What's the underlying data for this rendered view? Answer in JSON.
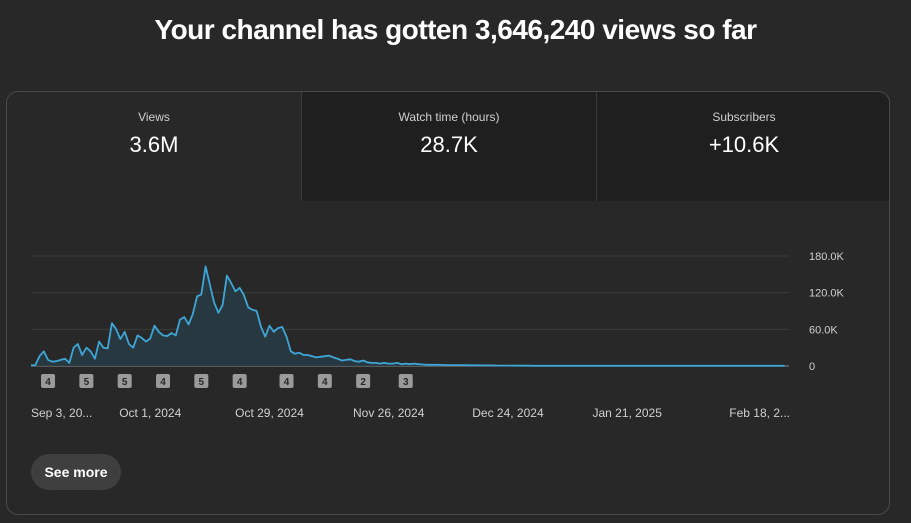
{
  "headline": "Your channel has gotten 3,646,240 views so far",
  "metrics": [
    {
      "label": "Views",
      "value": "3.6M"
    },
    {
      "label": "Watch time (hours)",
      "value": "28.7K"
    },
    {
      "label": "Subscribers",
      "value": "+10.6K"
    }
  ],
  "see_more_label": "See more",
  "colors": {
    "line": "#3ea6d7",
    "area": "#273a44",
    "grid": "#3d3d3d",
    "badge": "#9a9a9a"
  },
  "chart_data": {
    "type": "area",
    "x_start": "2024-09-03",
    "x_end": "2025-02-28",
    "x_tick_labels": [
      "Sep 3, 20...",
      "Oct 1, 2024",
      "Oct 29, 2024",
      "Nov 26, 2024",
      "Dec 24, 2024",
      "Jan 21, 2025",
      "Feb 18, 2..."
    ],
    "x_tick_dates": [
      "2024-09-03",
      "2024-10-01",
      "2024-10-29",
      "2024-11-26",
      "2024-12-24",
      "2025-01-21",
      "2025-02-18"
    ],
    "y_tick_labels": [
      "180.0K",
      "120.0K",
      "60.0K",
      "0"
    ],
    "y_tick_values": [
      180000,
      120000,
      60000,
      0
    ],
    "ylim": [
      0,
      180000
    ],
    "grid": true,
    "series": [
      {
        "values": [
          1200,
          1500,
          16000,
          24000,
          10000,
          7000,
          8000,
          10000,
          12000,
          5000,
          30000,
          36000,
          18000,
          30000,
          24000,
          12000,
          40000,
          30000,
          29000,
          70000,
          60000,
          44000,
          56000,
          36000,
          30000,
          50000,
          46000,
          40000,
          45000,
          66000,
          56000,
          50000,
          49000,
          54000,
          50000,
          76000,
          80000,
          68000,
          85000,
          114000,
          117000,
          163000,
          133000,
          104000,
          87000,
          100000,
          148000,
          136000,
          122000,
          128000,
          116000,
          96000,
          92000,
          90000,
          64000,
          48000,
          66000,
          56000,
          62000,
          64000,
          48000,
          24000,
          20000,
          22000,
          18000,
          18000,
          16000,
          14000,
          15000,
          16000,
          17000,
          14000,
          12000,
          9000,
          10000,
          11000,
          8000,
          7000,
          9000,
          6000,
          5000,
          5000,
          4000,
          5000,
          4000,
          4000,
          5000,
          3000,
          4000,
          3000,
          4000,
          3000,
          2500,
          2000,
          2000,
          2000,
          1800,
          1600,
          1500,
          1500,
          1500,
          1400,
          1300,
          1200,
          1100,
          1200,
          1000,
          900,
          900,
          800,
          700,
          700,
          650,
          600,
          550,
          500,
          500,
          450,
          400,
          400,
          400,
          350,
          350,
          300,
          300,
          300,
          300,
          300,
          300,
          300,
          300,
          300,
          300,
          300,
          300,
          300,
          300,
          300,
          300,
          300,
          300,
          300,
          300,
          300,
          300,
          300,
          300,
          300,
          300,
          300,
          300,
          300,
          300,
          300,
          300,
          300,
          300,
          300,
          300,
          300,
          300,
          300,
          300,
          300,
          300,
          300,
          300,
          300,
          300,
          300,
          300,
          300,
          300,
          300,
          300,
          300,
          300,
          300
        ]
      }
    ],
    "annotations": [
      {
        "day": 4,
        "text": "4"
      },
      {
        "day": 13,
        "text": "5"
      },
      {
        "day": 22,
        "text": "5"
      },
      {
        "day": 31,
        "text": "4"
      },
      {
        "day": 40,
        "text": "5"
      },
      {
        "day": 49,
        "text": "4"
      },
      {
        "day": 60,
        "text": "4"
      },
      {
        "day": 69,
        "text": "4"
      },
      {
        "day": 78,
        "text": "2"
      },
      {
        "day": 88,
        "text": "3"
      }
    ]
  }
}
